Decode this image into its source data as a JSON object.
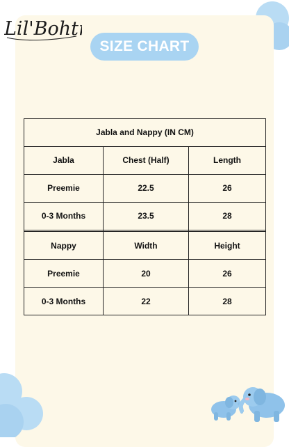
{
  "brand": {
    "name": "Lil'Bohtre"
  },
  "header": {
    "title": "SIZE CHART"
  },
  "table": {
    "title": "Jabla and Nappy (IN CM)",
    "sections": [
      {
        "headers": [
          "Jabla",
          "Chest (Half)",
          "Length"
        ],
        "rows": [
          [
            "Preemie",
            "22.5",
            "26"
          ],
          [
            "0-3 Months",
            "23.5",
            "28"
          ]
        ]
      },
      {
        "headers": [
          "Nappy",
          "Width",
          "Height"
        ],
        "rows": [
          [
            "Preemie",
            "20",
            "26"
          ],
          [
            "0-3 Months",
            "22",
            "28"
          ]
        ]
      }
    ]
  },
  "colors": {
    "page_background": "#ffffff",
    "card_background": "#fdf8e8",
    "pill_background": "#a9d4f2",
    "cloud": "#b9dcf4",
    "elephant": "#8fc2ea"
  },
  "decorations": [
    "cloud-icon",
    "elephant-icon"
  ]
}
